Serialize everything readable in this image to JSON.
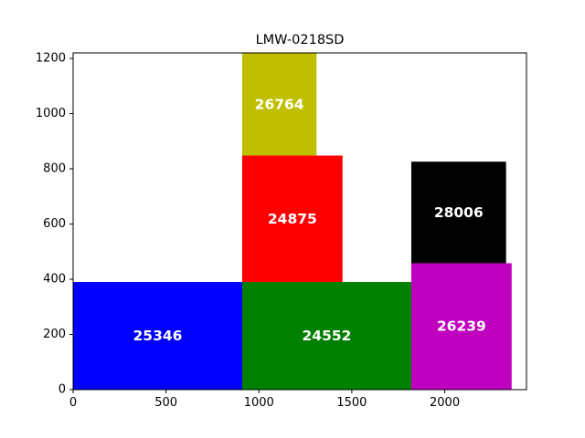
{
  "chart_data": {
    "type": "rectangle-layout",
    "title": "LMW-0218SD",
    "xlabel": "",
    "ylabel": "",
    "xlim": [
      0,
      2440
    ],
    "ylim": [
      0,
      1220
    ],
    "xticks": [
      0,
      500,
      1000,
      1500,
      2000
    ],
    "yticks": [
      0,
      200,
      400,
      600,
      800,
      1000,
      1200
    ],
    "grid": false,
    "rectangles": [
      {
        "label": "25346",
        "x": 0,
        "y": 0,
        "width": 910,
        "height": 390,
        "color": "#0000ff"
      },
      {
        "label": "24552",
        "x": 910,
        "y": 0,
        "width": 910,
        "height": 390,
        "color": "#008000"
      },
      {
        "label": "26239",
        "x": 1820,
        "y": 0,
        "width": 540,
        "height": 458,
        "color": "#bf00bf"
      },
      {
        "label": "24875",
        "x": 910,
        "y": 390,
        "width": 540,
        "height": 458,
        "color": "#ff0000"
      },
      {
        "label": "28006",
        "x": 1820,
        "y": 458,
        "width": 510,
        "height": 368,
        "color": "#000000"
      },
      {
        "label": "26764",
        "x": 910,
        "y": 848,
        "width": 400,
        "height": 372,
        "color": "#bfbf00"
      }
    ]
  }
}
